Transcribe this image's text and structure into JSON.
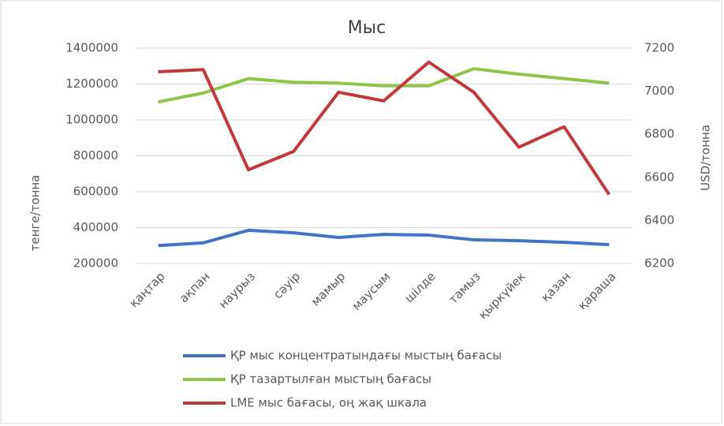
{
  "chart_data": {
    "type": "line",
    "title": "Мыс",
    "y_label": "тенге/тонна",
    "y2_label": "USD/тонна",
    "categories": [
      "қаңтар",
      "ақпан",
      "наурыз",
      "сәуір",
      "мамыр",
      "маусым",
      "шілде",
      "тамыз",
      "қыркүйек",
      "қазан",
      "қараша"
    ],
    "series": [
      {
        "name": "ҚР мыс концентратындағы мыстың бағасы",
        "color": "#4472c4",
        "values": [
          300000,
          315000,
          385000,
          371000,
          345000,
          362000,
          358000,
          332000,
          327000,
          318000,
          305000
        ]
      },
      {
        "name": "ҚР тазартылған мыстың бағасы",
        "color": "#8fc44b",
        "values": [
          1100000,
          1150000,
          1230000,
          1210000,
          1205000,
          1190000,
          1190000,
          1285000,
          1255000,
          1230000,
          1205000
        ]
      },
      {
        "name": "LME мыс бағасы, оң жақ шкала",
        "color": "#c0393b",
        "axis": "y2",
        "values": [
          7090,
          7100,
          6635,
          6720,
          6995,
          6955,
          7135,
          6995,
          6740,
          6835,
          6520
        ]
      }
    ],
    "ylim": [
      200000,
      1400000
    ],
    "yticks": [
      200000,
      400000,
      600000,
      800000,
      1000000,
      1200000,
      1400000
    ],
    "y2lim": [
      6200,
      7200
    ],
    "y2ticks": [
      6200,
      6400,
      6600,
      6800,
      7000,
      7200
    ],
    "grid": true,
    "legend": "bottom"
  }
}
